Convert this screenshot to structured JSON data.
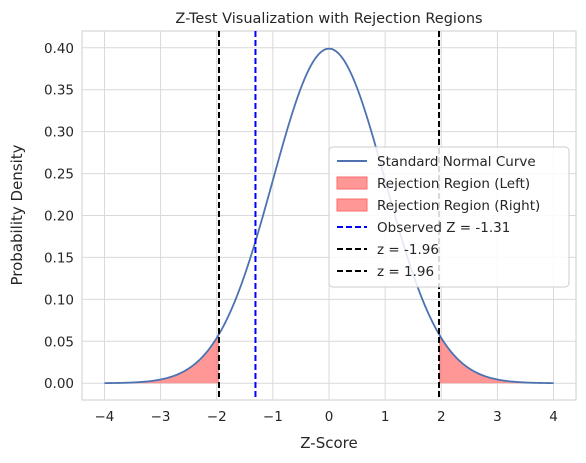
{
  "chart_data": {
    "type": "line",
    "title": "Z-Test Visualization with Rejection Regions",
    "xlabel": "Z-Score",
    "ylabel": "Probability Density",
    "xlim": [
      -4.4,
      4.4
    ],
    "ylim": [
      -0.02,
      0.42
    ],
    "xticks": [
      -4,
      -3,
      -2,
      -1,
      0,
      1,
      2,
      3,
      4
    ],
    "yticks": [
      0.0,
      0.05,
      0.1,
      0.15,
      0.2,
      0.25,
      0.3,
      0.35,
      0.4
    ],
    "xtick_labels": [
      "−4",
      "−3",
      "−2",
      "−1",
      "0",
      "1",
      "2",
      "3",
      "4"
    ],
    "ytick_labels": [
      "0.00",
      "0.05",
      "0.10",
      "0.15",
      "0.20",
      "0.25",
      "0.30",
      "0.35",
      "0.40"
    ],
    "grid": true,
    "legend_position": "center-right",
    "curve": {
      "name": "Standard Normal Curve",
      "x_range": [
        -4,
        4
      ],
      "color": "#4c72b0",
      "x": [
        -4.0,
        -3.5,
        -3.0,
        -2.5,
        -2.0,
        -1.96,
        -1.5,
        -1.31,
        -1.0,
        -0.5,
        0.0,
        0.5,
        1.0,
        1.5,
        1.96,
        2.0,
        2.5,
        3.0,
        3.5,
        4.0
      ],
      "y": [
        0.0001,
        0.0009,
        0.0044,
        0.0175,
        0.054,
        0.0584,
        0.1295,
        0.1691,
        0.242,
        0.3521,
        0.3989,
        0.3521,
        0.242,
        0.1295,
        0.0584,
        0.054,
        0.0175,
        0.0044,
        0.0009,
        0.0001
      ]
    },
    "rejection_regions": [
      {
        "name": "Rejection Region (Left)",
        "from": -4,
        "to": -1.96,
        "color": "#ff6b6b"
      },
      {
        "name": "Rejection Region (Right)",
        "from": 1.96,
        "to": 4,
        "color": "#ff6b6b"
      }
    ],
    "vertical_lines": [
      {
        "name": "Observed Z = -1.31",
        "x": -1.31,
        "color": "#0000ff"
      },
      {
        "name": "z = -1.96",
        "x": -1.96,
        "color": "#000000"
      },
      {
        "name": "z = 1.96",
        "x": 1.96,
        "color": "#000000"
      }
    ],
    "legend": [
      {
        "label": "Standard Normal Curve",
        "kind": "line",
        "color": "#4c72b0"
      },
      {
        "label": "Rejection Region (Left)",
        "kind": "patch",
        "color": "#ff6b6b"
      },
      {
        "label": "Rejection Region (Right)",
        "kind": "patch",
        "color": "#ff6b6b"
      },
      {
        "label": "Observed Z = -1.31",
        "kind": "dashed",
        "color": "#0000ff"
      },
      {
        "label": "z = -1.96",
        "kind": "dashed",
        "color": "#000000"
      },
      {
        "label": "z = 1.96",
        "kind": "dashed",
        "color": "#000000"
      }
    ]
  }
}
